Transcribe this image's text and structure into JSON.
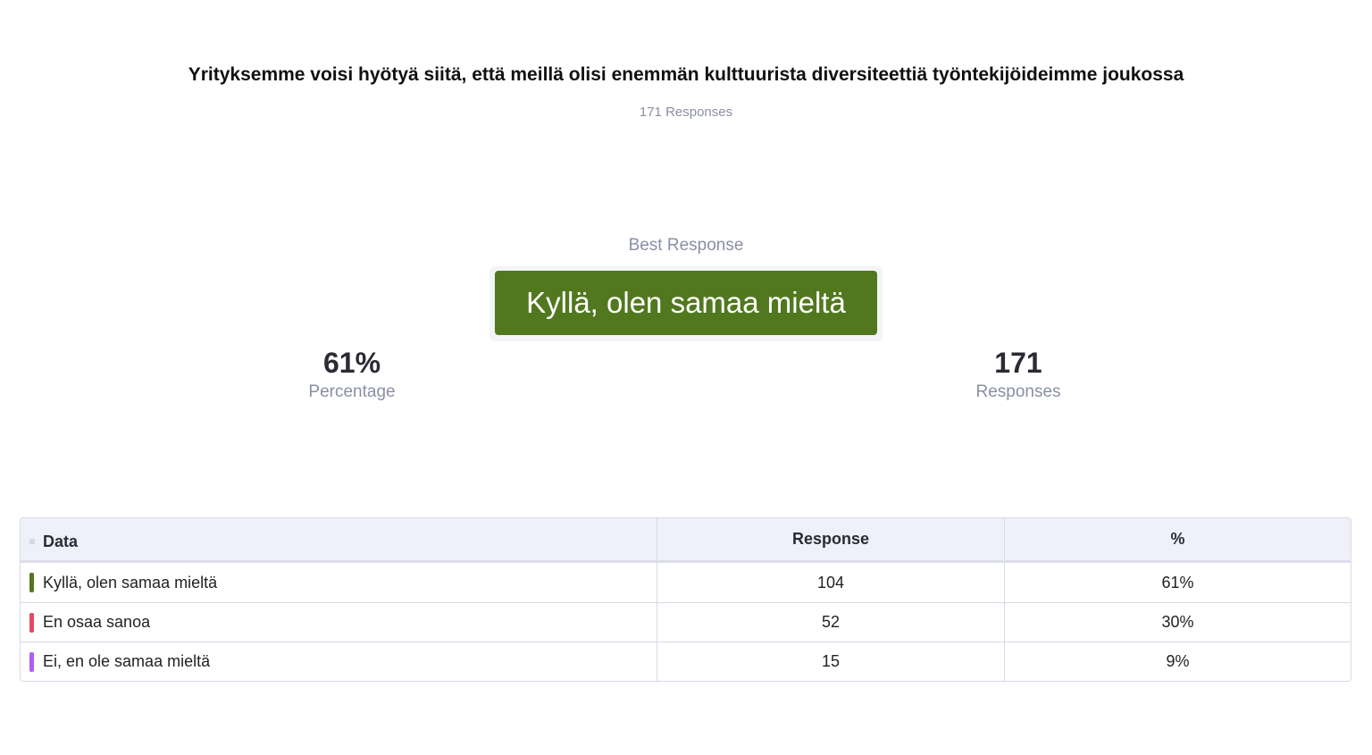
{
  "question": {
    "title": "Yrityksemme voisi hyötyä siitä, että meillä olisi enemmän kulttuurista diversiteettiä työntekijöideimme joukossa",
    "response_count": "171 Responses"
  },
  "best_response": {
    "label": "Best Response",
    "value": "Kyllä, olen samaa mieltä",
    "color": "#51781f"
  },
  "stats": {
    "percentage": {
      "value": "61%",
      "label": "Percentage"
    },
    "responses": {
      "value": "171",
      "label": "Responses"
    }
  },
  "table": {
    "headers": {
      "data": "Data",
      "response": "Response",
      "percent": "%"
    },
    "rows": [
      {
        "label": "Kyllä, olen samaa mieltä",
        "response": "104",
        "percent": "61%",
        "color": "#51781f"
      },
      {
        "label": "En osaa sanoa",
        "response": "52",
        "percent": "30%",
        "color": "#e8485f"
      },
      {
        "label": "Ei, en ole samaa mieltä",
        "response": "15",
        "percent": "9%",
        "color": "#b45cf0"
      }
    ]
  }
}
